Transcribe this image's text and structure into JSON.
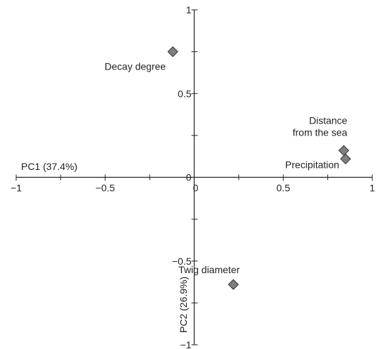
{
  "chart_data": {
    "type": "scatter",
    "title": "",
    "xlabel": "PC1 (37.4%)",
    "ylabel": "PC2 (26.9%)",
    "xlim": [
      -1,
      1
    ],
    "ylim": [
      -1,
      1
    ],
    "x_ticks": [
      -1,
      -0.5,
      0,
      0.5,
      1
    ],
    "y_ticks": [
      -1,
      -0.5,
      0,
      0.5,
      1
    ],
    "x_tick_labels": [
      "−1",
      "−0.5",
      "0",
      "0.5",
      "1"
    ],
    "y_tick_labels": [
      "−1",
      "−0.5",
      "0",
      "0.5",
      "1"
    ],
    "grid": false,
    "marker": "diamond",
    "marker_color": "#7f7f7f",
    "points": [
      {
        "label_lines": [
          "Decay degree"
        ],
        "x": -0.12,
        "y": 0.75
      },
      {
        "label_lines": [
          "Distance",
          "from the sea"
        ],
        "x": 0.84,
        "y": 0.16
      },
      {
        "label_lines": [
          "Precipitation"
        ],
        "x": 0.85,
        "y": 0.11
      },
      {
        "label_lines": [
          "Twig diameter"
        ],
        "x": 0.22,
        "y": -0.64
      }
    ]
  }
}
